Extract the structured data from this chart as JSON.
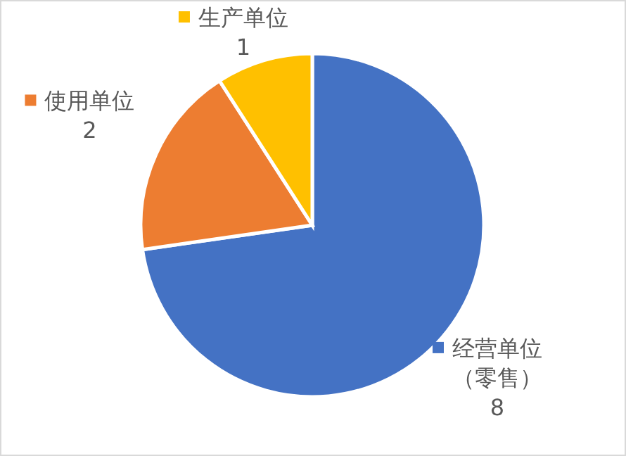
{
  "chart_data": {
    "type": "pie",
    "categories": [
      "经营单位（零售）",
      "使用单位",
      "生产单位"
    ],
    "values": [
      8,
      2,
      1
    ],
    "colors": [
      "#4472c4",
      "#ed7d31",
      "#ffc000"
    ],
    "data_labels": true,
    "legend": "top left"
  }
}
